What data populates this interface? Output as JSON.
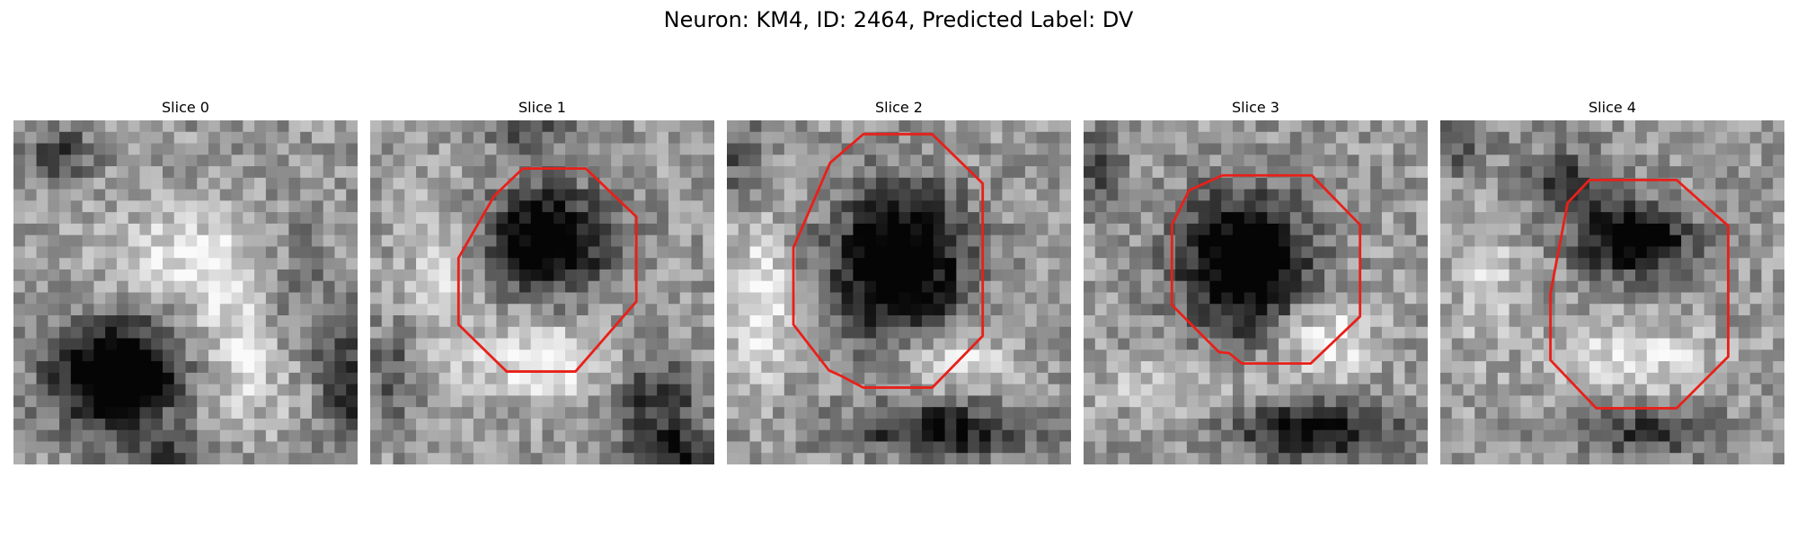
{
  "figure": {
    "title": "Neuron: KM4, ID: 2464, Predicted Label: DV"
  },
  "panels": [
    {
      "title": "Slice 0",
      "has_outline": false
    },
    {
      "title": "Slice 1",
      "has_outline": true
    },
    {
      "title": "Slice 2",
      "has_outline": true
    },
    {
      "title": "Slice 3",
      "has_outline": true
    },
    {
      "title": "Slice 4",
      "has_outline": true
    }
  ],
  "colors": {
    "outline": "#e8201a",
    "background": "#ffffff",
    "text": "#000000"
  },
  "colormap": "grayscale"
}
